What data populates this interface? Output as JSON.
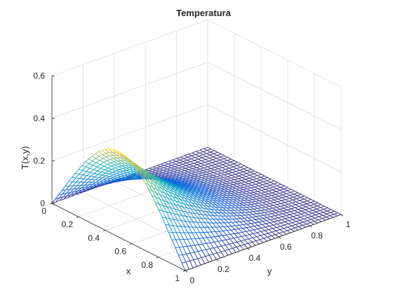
{
  "figure": {
    "background": "#ffffff",
    "axis_color": "#262626",
    "grid_color": "#dcdcdc"
  },
  "chart_data": {
    "type": "surface",
    "mesh": true,
    "colormap": "parula",
    "title": "Temperatura",
    "xlabel": "x",
    "ylabel": "y",
    "zlabel": "T(x,y)",
    "xlim": [
      0,
      1
    ],
    "ylim": [
      0,
      1
    ],
    "zlim": [
      0,
      0.6
    ],
    "xticks": [
      0,
      0.2,
      0.4,
      0.6,
      0.8,
      1
    ],
    "xtick_labels": [
      "0",
      "0.2",
      "0.4",
      "0.6",
      "0.8",
      "1"
    ],
    "yticks": [
      0,
      0.2,
      0.4,
      0.6,
      0.8,
      1
    ],
    "ytick_labels": [
      "0",
      "0.2",
      "0.4",
      "0.6",
      "0.8",
      "1"
    ],
    "zticks": [
      0,
      0.2,
      0.4,
      0.6
    ],
    "ztick_labels": [
      "0",
      "0.2",
      "0.4",
      "0.6"
    ],
    "grid": true,
    "view": {
      "azimuth": -37.5,
      "elevation": 30
    },
    "surface": {
      "grid_points": 41,
      "peak": {
        "x": 0.5,
        "y": 0,
        "T": 0.35
      },
      "boundary_x0": 0,
      "boundary_x1": 0,
      "boundary_y1": 0
    }
  }
}
